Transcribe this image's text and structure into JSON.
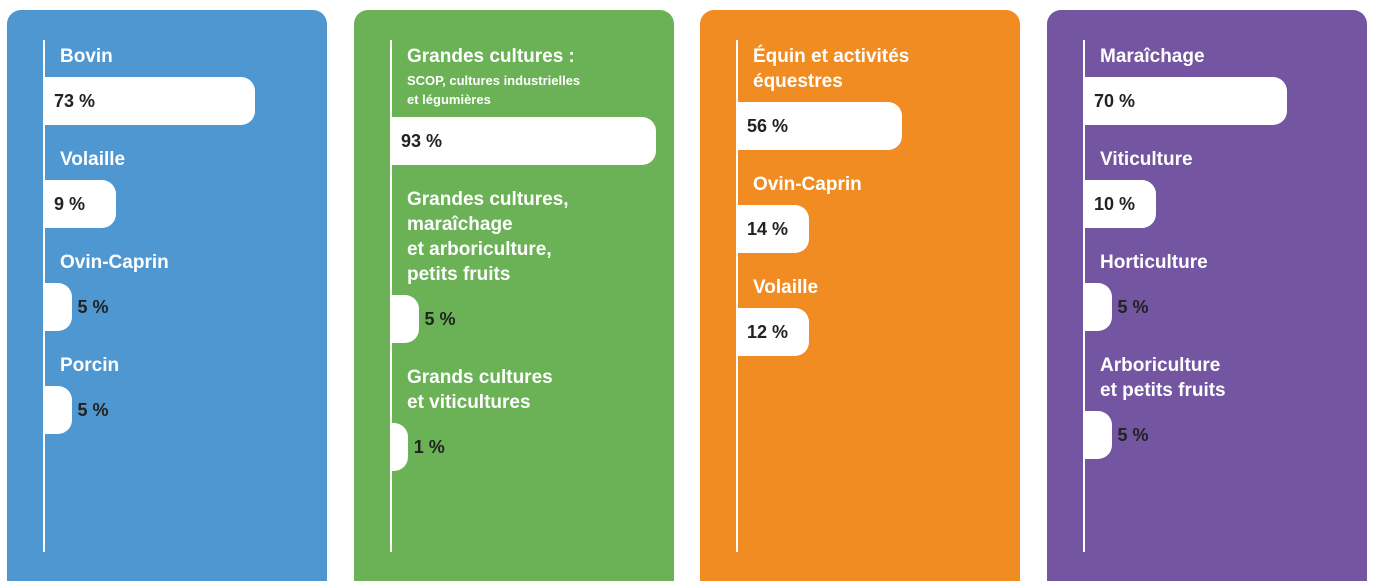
{
  "chart_data": [
    {
      "type": "bar",
      "orientation": "horizontal",
      "color": "#4f97d1",
      "categories": [
        "Bovin",
        "Volaille",
        "Ovin-Caprin",
        "Porcin"
      ],
      "values": [
        73,
        9,
        5,
        5
      ],
      "value_labels": [
        "73 %",
        "9 %",
        "5 %",
        "5 %"
      ]
    },
    {
      "type": "bar",
      "orientation": "horizontal",
      "color": "#6ab255",
      "categories": [
        "Grandes cultures :",
        "Grandes cultures,\nmaraîchage\net arboriculture,\npetits fruits",
        "Grands cultures\net viticultures"
      ],
      "category_notes": [
        "SCOP, cultures industrielles\net légumières",
        null,
        null
      ],
      "values": [
        93,
        5,
        1
      ],
      "value_labels": [
        "93 %",
        "5 %",
        "1 %"
      ]
    },
    {
      "type": "bar",
      "orientation": "horizontal",
      "color": "#f08c22",
      "categories": [
        "Équin et activités\néquestres",
        "Ovin-Caprin",
        "Volaille"
      ],
      "values": [
        56,
        14,
        12
      ],
      "value_labels": [
        "56 %",
        "14 %",
        "12 %"
      ]
    },
    {
      "type": "bar",
      "orientation": "horizontal",
      "color": "#7355a1",
      "categories": [
        "Maraîchage",
        "Viticulture",
        "Horticulture",
        "Arboriculture\net petits fruits"
      ],
      "values": [
        70,
        10,
        5,
        5
      ],
      "value_labels": [
        "70 %",
        "10 %",
        "5 %",
        "5 %"
      ]
    }
  ]
}
